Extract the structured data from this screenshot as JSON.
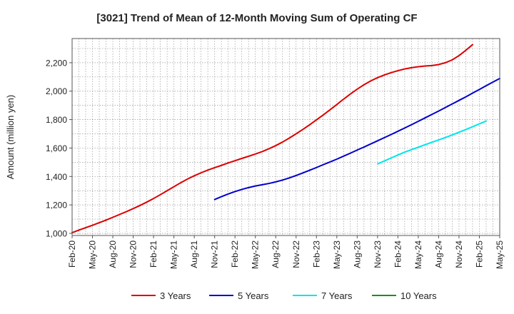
{
  "chart_data": {
    "type": "line",
    "title": "[3021]  Trend of Mean of 12-Month Moving Sum of Operating CF",
    "xlabel": "",
    "ylabel": "Amount (million yen)",
    "ylim": [
      985,
      2370
    ],
    "yticks": [
      1000,
      1200,
      1400,
      1600,
      1800,
      2000,
      2200
    ],
    "ytick_labels": [
      "1,000",
      "1,200",
      "1,400",
      "1,600",
      "1,800",
      "2,000",
      "2,200"
    ],
    "x_range": [
      "2020-02",
      "2025-05"
    ],
    "xtick_labels": [
      "Feb-20",
      "May-20",
      "Aug-20",
      "Nov-20",
      "Feb-21",
      "May-21",
      "Aug-21",
      "Nov-21",
      "Feb-22",
      "May-22",
      "Aug-22",
      "Nov-22",
      "Feb-23",
      "May-23",
      "Aug-23",
      "Nov-23",
      "Feb-24",
      "May-24",
      "Aug-24",
      "Nov-24",
      "Feb-25",
      "May-25"
    ],
    "grid": true,
    "legend_position": "bottom",
    "series": [
      {
        "name": "3 Years",
        "color": "#dd0000",
        "start": "2020-02",
        "values": [
          1005,
          1023,
          1040,
          1057,
          1075,
          1093,
          1113,
          1133,
          1153,
          1174,
          1196,
          1220,
          1245,
          1272,
          1300,
          1328,
          1356,
          1382,
          1405,
          1426,
          1445,
          1462,
          1478,
          1495,
          1511,
          1527,
          1542,
          1558,
          1575,
          1595,
          1617,
          1642,
          1670,
          1700,
          1731,
          1764,
          1798,
          1833,
          1869,
          1906,
          1944,
          1980,
          2014,
          2045,
          2072,
          2095,
          2114,
          2130,
          2144,
          2156,
          2165,
          2172,
          2177,
          2180,
          2187,
          2200,
          2220,
          2250,
          2287,
          2327
        ]
      },
      {
        "name": "5 Years",
        "color": "#0000cc",
        "start": "2021-11",
        "values": [
          1238,
          1258,
          1277,
          1294,
          1309,
          1322,
          1333,
          1342,
          1351,
          1362,
          1375,
          1390,
          1407,
          1425,
          1444,
          1463,
          1483,
          1502,
          1522,
          1543,
          1564,
          1586,
          1607,
          1629,
          1651,
          1673,
          1695,
          1718,
          1741,
          1764,
          1788,
          1812,
          1836,
          1860,
          1885,
          1910,
          1935,
          1960,
          1986,
          2012,
          2038,
          2064,
          2089
        ]
      },
      {
        "name": "7 Years",
        "color": "#00e5ee",
        "start": "2023-11",
        "values": [
          1488,
          1509,
          1530,
          1551,
          1571,
          1589,
          1606,
          1623,
          1640,
          1657,
          1674,
          1692,
          1711,
          1730,
          1750,
          1770,
          1790
        ]
      },
      {
        "name": "10 Years",
        "color": "#228b22",
        "start": "2023-11",
        "values": []
      }
    ]
  }
}
